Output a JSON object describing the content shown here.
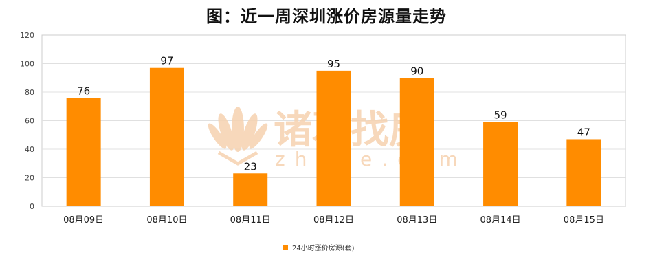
{
  "chart_data": {
    "type": "bar",
    "title": "图：近一周深圳涨价房源量走势",
    "categories": [
      "08月09日",
      "08月10日",
      "08月11日",
      "08月12日",
      "08月13日",
      "08月14日",
      "08月15日"
    ],
    "series": [
      {
        "name": "24小时涨价房源(套)",
        "values": [
          76,
          97,
          23,
          95,
          90,
          59,
          47
        ]
      }
    ],
    "ylim": [
      0,
      120
    ],
    "yticks": [
      0,
      20,
      40,
      60,
      80,
      100,
      120
    ],
    "grid": true,
    "legend": "bottom-center",
    "bar_color": "#ff8c00",
    "grid_color": "#e0e0e0"
  },
  "watermark": {
    "brand_cn": "诸葛找房",
    "brand_url": "zhuge.com",
    "color": "#f6d2b0"
  }
}
